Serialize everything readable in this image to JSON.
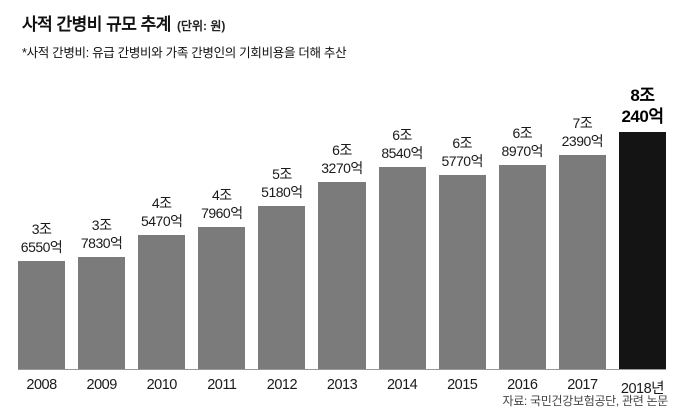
{
  "header": {
    "title": "사적 간병비 규모 추계",
    "unit": "(단위: 원)",
    "subtitle": "*사적 간병비: 유급 간병비와 가족 간병인의 기회비용을 더해 추산"
  },
  "footer": {
    "source": "자료: 국민건강보험공단, 관련 논문"
  },
  "colors": {
    "bar": "#7b7b7b",
    "highlight_bar": "#141414",
    "baseline": "#999999"
  },
  "chart_data": {
    "type": "bar",
    "title": "사적 간병비 규모 추계",
    "unit_note": "단위: 원",
    "categories": [
      "2008",
      "2009",
      "2010",
      "2011",
      "2012",
      "2013",
      "2014",
      "2015",
      "2016",
      "2017",
      "2018년"
    ],
    "values": [
      36550,
      37830,
      45470,
      47960,
      55180,
      63270,
      68540,
      65770,
      68970,
      72390,
      80240
    ],
    "value_unit": "억 원",
    "value_labels": [
      [
        "3조",
        "6550억"
      ],
      [
        "3조",
        "7830억"
      ],
      [
        "4조",
        "5470억"
      ],
      [
        "4조",
        "7960억"
      ],
      [
        "5조",
        "5180억"
      ],
      [
        "6조",
        "3270억"
      ],
      [
        "6조",
        "8540억"
      ],
      [
        "6조",
        "5770억"
      ],
      [
        "6조",
        "8970억"
      ],
      [
        "7조",
        "2390억"
      ],
      [
        "8조",
        "240억"
      ]
    ],
    "highlight_index": 10,
    "xlabel": "",
    "ylabel": "",
    "ylim": [
      0,
      85000
    ],
    "grid": false,
    "legend": "none"
  }
}
